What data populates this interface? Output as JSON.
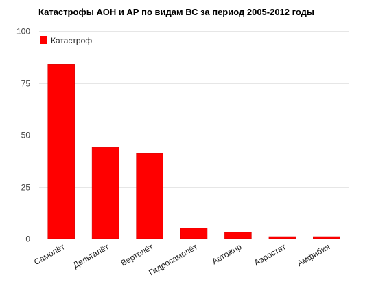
{
  "chart_data": {
    "type": "bar",
    "title": "Катастрофы АОН и АР по видам ВС за период 2005-2012 годы",
    "categories": [
      "Самолёт",
      "Дельталёт",
      "Вертолёт",
      "Гидросамолёт",
      "Автожир",
      "Аэростат",
      "Амфибия"
    ],
    "series": [
      {
        "name": "Катастроф",
        "values": [
          84,
          44,
          41,
          5,
          3,
          1,
          1
        ]
      }
    ],
    "ylim": [
      0,
      100
    ],
    "yticks": [
      0,
      25,
      50,
      75,
      100
    ],
    "grid": true,
    "legend": "top-left",
    "colors": {
      "bar": "#ff0000",
      "bar_stroke": "#cc0000",
      "grid": "#e6e6e6",
      "axis": "#333333"
    }
  }
}
